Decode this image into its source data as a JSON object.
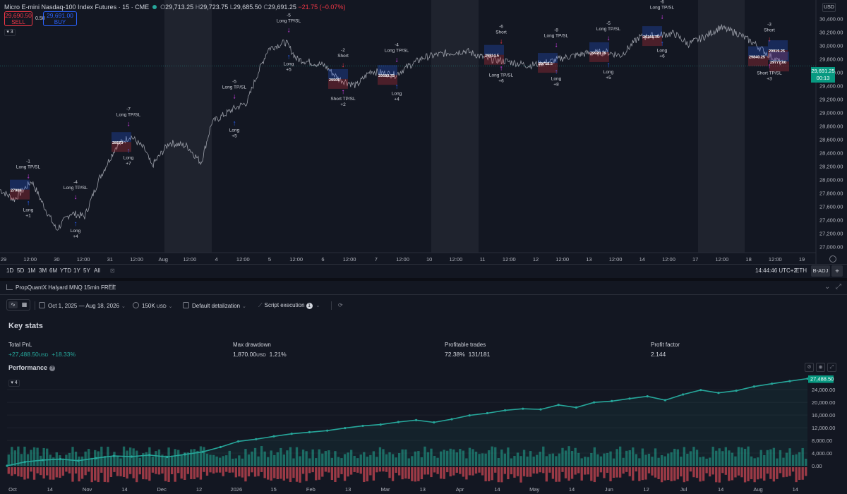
{
  "chart": {
    "title": "Micro E-mini Nasdaq-100 Index Futures · 15 · CME",
    "ohlc": {
      "o_label": "O",
      "o": "29,713.25",
      "h_label": "H",
      "h": "29,723.75",
      "l_label": "L",
      "l": "29,685.50",
      "c_label": "C",
      "c": "29,691.25",
      "change": "−21.75 (−0.07%)"
    },
    "sell_price": "29,690.50",
    "sell_label": "SELL",
    "spread": "0.50",
    "buy_price": "29,691.00",
    "buy_label": "BUY",
    "indicator_count": "3",
    "currency": "USD",
    "last_price": "29,691.25",
    "countdown": "00:13",
    "price_ticks": [
      "30,400.00",
      "30,200.00",
      "30,000.00",
      "29,800.00",
      "29,600.00",
      "29,400.00",
      "29,200.00",
      "29,000.00",
      "28,800.00",
      "28,600.00",
      "28,400.00",
      "28,200.00",
      "28,000.00",
      "27,800.00",
      "27,600.00",
      "27,400.00",
      "27,200.00",
      "27,000.00"
    ],
    "time_ticks": [
      "29",
      "12:00",
      "30",
      "12:00",
      "31",
      "12:00",
      "Aug",
      "12:00",
      "4",
      "12:00",
      "5",
      "12:00",
      "6",
      "12:00",
      "7",
      "12:00",
      "10",
      "12:00",
      "11",
      "12:00",
      "12",
      "12:00",
      "13",
      "12:00",
      "14",
      "12:00",
      "17",
      "12:00",
      "18",
      "12:00",
      "19"
    ],
    "signals": [
      {
        "type": "long",
        "top": "-1",
        "top2": "Long TP/SL",
        "bottom": "Long",
        "bottom2": "+1",
        "price": 27808
      },
      {
        "type": "long",
        "top": "-4",
        "top2": "Long TP/SL",
        "bottom": "Long",
        "bottom2": "+4",
        "price": 27500
      },
      {
        "type": "long",
        "top": "-7",
        "top2": "Long TP/SL",
        "bottom": "Long",
        "bottom2": "+7",
        "price": 28586
      },
      {
        "type": "long",
        "top": "-5",
        "top2": "Long TP/SL",
        "bottom": "Long",
        "bottom2": "+5",
        "price": 29000
      },
      {
        "type": "long",
        "top": "-5",
        "top2": "Long TP/SL",
        "bottom": "Long",
        "bottom2": "+5",
        "price": 29989
      },
      {
        "type": "short",
        "top": "-2",
        "top2": "Short",
        "bottom": "Short TP/SL",
        "bottom2": "+2",
        "price": 29468
      },
      {
        "type": "long",
        "top": "-4",
        "top2": "Long TP/SL",
        "bottom": "Long",
        "bottom2": "+4",
        "price": 29546
      },
      {
        "type": "short",
        "top": "-6",
        "top2": "Short",
        "bottom": "Long TP/SL",
        "bottom2": "+6",
        "price": 29821
      },
      {
        "type": "long",
        "top": "-8",
        "top2": "Long TP/SL",
        "bottom": "Long",
        "bottom2": "+8",
        "price": 29770
      },
      {
        "type": "long",
        "top": "-5",
        "top2": "Long TP/SL",
        "bottom": "Long",
        "bottom2": "+5",
        "price": 29870
      },
      {
        "type": "long",
        "top": "-6",
        "top2": "Long TP/SL",
        "bottom": "Long",
        "bottom2": "+6",
        "price": 30190
      },
      {
        "type": "short",
        "top": "-3",
        "top2": "Short",
        "bottom": "Short TP/SL",
        "bottom2": "+3",
        "price": 29850
      }
    ],
    "trade_labels": [
      "27909",
      "28573",
      "29506",
      "29593.75",
      "29814.5",
      "29715.5",
      "29920.75",
      "30166.75",
      "29840.25",
      "29919.25",
      "29777.00"
    ],
    "colors": {
      "bg": "#131722",
      "session": "#2a2e39",
      "price_line": "#b2b5be",
      "up": "#26a69a",
      "down": "#f23645",
      "signal": "#e040fb",
      "long_arrow": "#2962ff"
    }
  },
  "range_bar": {
    "ranges": [
      "1D",
      "5D",
      "1M",
      "3M",
      "6M",
      "YTD",
      "1Y",
      "5Y",
      "All"
    ],
    "clock": "14:44:46 UTC+2",
    "session": "ETH",
    "adjust": "B-ADJ"
  },
  "tester": {
    "strategy_name": "PropQuantX Halyard MNQ 15min FREE",
    "date_range": "Oct 1, 2025 — Aug 18, 2026",
    "capital": "150K",
    "capital_unit": "USD",
    "detalization": "Default detalization",
    "execution": "Script execution",
    "execution_badge": "1",
    "key_stats_title": "Key stats",
    "stats": [
      {
        "label": "Total PnL",
        "value": "+27,488.50",
        "unit": "USD",
        "extra": "+18.33%"
      },
      {
        "label": "Max drawdown",
        "value": "1,870.00",
        "unit": "USD",
        "extra": "1.21%"
      },
      {
        "label": "Profitable trades",
        "value": "72.38%",
        "unit": "",
        "extra": "131/181"
      },
      {
        "label": "Profit factor",
        "value": "2.144",
        "unit": "",
        "extra": ""
      }
    ],
    "performance_title": "Performance",
    "performance_toggle": "4",
    "equity_last": "27,488.50"
  },
  "chart_data": {
    "type": "line",
    "title": "Performance",
    "x_labels": [
      "Oct",
      "14",
      "Nov",
      "14",
      "Dec",
      "12",
      "2026",
      "15",
      "Feb",
      "13",
      "Mar",
      "13",
      "Apr",
      "14",
      "May",
      "14",
      "Jun",
      "12",
      "Jul",
      "14",
      "Aug",
      "14"
    ],
    "y_ticks": [
      4000,
      8000,
      12000,
      16000,
      20000,
      24000
    ],
    "ylim": [
      -4000,
      28500
    ],
    "series": [
      {
        "name": "",
        "values": [
          0,
          1200,
          1800,
          2100,
          1600,
          2400,
          3100,
          2900,
          3400,
          2800,
          3600,
          4400,
          5900,
          7700,
          8400,
          9300,
          10100,
          10600,
          11100,
          11900,
          12600,
          13000,
          13800,
          14400,
          13700,
          14700,
          15900,
          16600,
          17500,
          18000,
          17800,
          19200,
          18400,
          20000,
          20400,
          21200,
          21900,
          20700,
          22500,
          23900,
          23000,
          23700,
          25000,
          25900,
          26700,
          27488.5
        ]
      }
    ],
    "bars_note": "per-trade PnL bars"
  }
}
